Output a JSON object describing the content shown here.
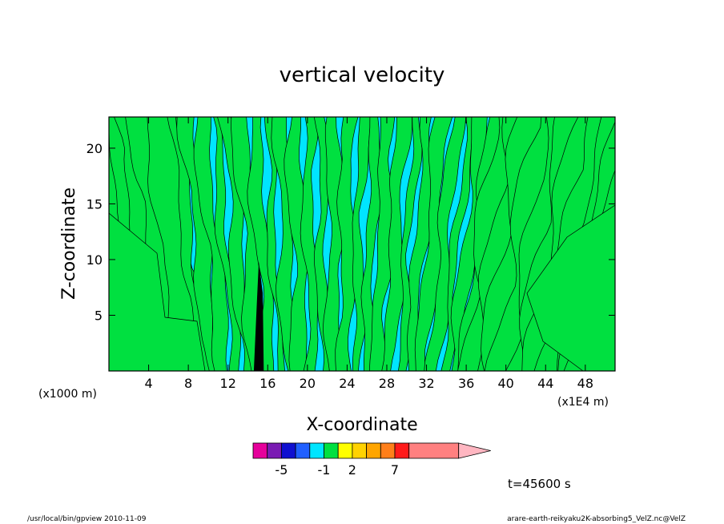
{
  "chart_data": {
    "type": "heatmap",
    "title": "vertical velocity",
    "xlabel": "X-coordinate",
    "ylabel": "Z-coordinate",
    "x_unit_left": "(x1000 m)",
    "x_unit_right": "(x1E4 m)",
    "xlim": [
      0,
      51
    ],
    "ylim": [
      0,
      22.8
    ],
    "x_ticks": [
      4,
      8,
      12,
      16,
      20,
      24,
      28,
      32,
      36,
      40,
      44,
      48
    ],
    "y_ticks": [
      5,
      10,
      15,
      20
    ],
    "colorbar": {
      "colors": [
        "#e6009b",
        "#7a1bb3",
        "#1010d0",
        "#2060ff",
        "#00e5ff",
        "#00e040",
        "#ffff00",
        "#ffd200",
        "#ffa500",
        "#ff7f1a",
        "#ff1a1a",
        "#ff8080",
        "#ffb6c1"
      ],
      "tick_labels": [
        {
          "label": "-5",
          "boundary": 2
        },
        {
          "label": "-1",
          "boundary": 5
        },
        {
          "label": "2",
          "boundary": 7
        },
        {
          "label": "7",
          "boundary": 10
        }
      ]
    },
    "field_colors": {
      "negative": "#00e5ff",
      "positive": "#00e040",
      "strong": "#000000"
    },
    "time_label": "t=45600 s",
    "footer_left": "/usr/local/bin/gpview  2010-11-09",
    "footer_right": "arare-earth-reikyaku2K-absorbing5_VelZ.nc@VelZ"
  }
}
